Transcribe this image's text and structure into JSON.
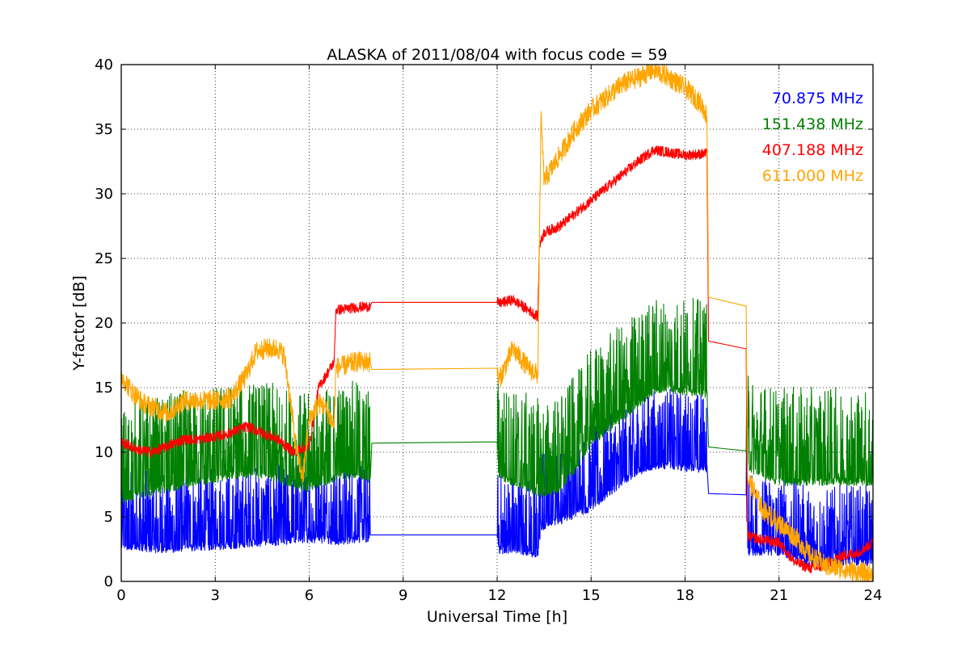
{
  "chart_data": {
    "type": "line",
    "title": "ALASKA of 2011/08/04 with focus code = 59",
    "xlabel": "Universal Time [h]",
    "ylabel": "Y-factor [dB]",
    "xlim": [
      0,
      24
    ],
    "ylim": [
      0,
      40
    ],
    "xticks": [
      0,
      3,
      6,
      9,
      12,
      15,
      18,
      21,
      24
    ],
    "yticks": [
      0,
      5,
      10,
      15,
      20,
      25,
      30,
      35,
      40
    ],
    "grid": true,
    "legend_position": "top-right",
    "series": [
      {
        "name": "70.875 MHz",
        "color": "#0000ff",
        "noise": 2.6,
        "points": [
          [
            0,
            3.0
          ],
          [
            0.5,
            3.0
          ],
          [
            1,
            2.8
          ],
          [
            1.5,
            2.8
          ],
          [
            2,
            2.9
          ],
          [
            2.5,
            3.0
          ],
          [
            3,
            3.0
          ],
          [
            3.5,
            3.1
          ],
          [
            4,
            3.2
          ],
          [
            4.5,
            3.3
          ],
          [
            5,
            3.4
          ],
          [
            5.5,
            3.5
          ],
          [
            6,
            3.6
          ],
          [
            6.5,
            3.5
          ],
          [
            7,
            3.4
          ],
          [
            7.5,
            3.5
          ],
          [
            7.95,
            3.6
          ],
          [
            12,
            3.6
          ],
          [
            12.05,
            2.7
          ],
          [
            12.5,
            2.8
          ],
          [
            13,
            2.5
          ],
          [
            13.3,
            2.4
          ],
          [
            13.4,
            4.5
          ],
          [
            14,
            5.0
          ],
          [
            14.5,
            5.5
          ],
          [
            15,
            6.0
          ],
          [
            15.5,
            7.0
          ],
          [
            16,
            8.0
          ],
          [
            16.5,
            8.8
          ],
          [
            17,
            9.2
          ],
          [
            17.5,
            9.3
          ],
          [
            18,
            9.1
          ],
          [
            18.7,
            9.0
          ],
          [
            18.75,
            6.8
          ],
          [
            19.95,
            6.7
          ],
          [
            20,
            2.6
          ],
          [
            20.5,
            2.6
          ],
          [
            21,
            2.6
          ],
          [
            21.5,
            2.2
          ],
          [
            22,
            1.6
          ],
          [
            22.5,
            1.5
          ],
          [
            23,
            1.8
          ],
          [
            23.5,
            1.8
          ],
          [
            24,
            1.8
          ]
        ]
      },
      {
        "name": "151.438 MHz",
        "color": "#008000",
        "noise": 3.2,
        "points": [
          [
            0,
            6.5
          ],
          [
            0.5,
            7.0
          ],
          [
            1,
            7.2
          ],
          [
            1.5,
            7.5
          ],
          [
            2,
            7.8
          ],
          [
            2.5,
            8.0
          ],
          [
            3,
            8.2
          ],
          [
            3.5,
            8.5
          ],
          [
            4,
            8.6
          ],
          [
            4.5,
            8.5
          ],
          [
            5,
            8.2
          ],
          [
            5.5,
            7.8
          ],
          [
            6,
            7.5
          ],
          [
            6.5,
            8.0
          ],
          [
            7,
            8.5
          ],
          [
            7.5,
            8.5
          ],
          [
            7.95,
            8.0
          ],
          [
            8,
            10.7
          ],
          [
            12,
            10.8
          ],
          [
            12.05,
            8.5
          ],
          [
            12.5,
            8.0
          ],
          [
            13,
            7.5
          ],
          [
            13.5,
            7.0
          ],
          [
            14,
            7.5
          ],
          [
            14.5,
            9.0
          ],
          [
            15,
            11.0
          ],
          [
            15.5,
            12.0
          ],
          [
            16,
            13.0
          ],
          [
            16.5,
            14.0
          ],
          [
            17,
            15.0
          ],
          [
            17.5,
            15.2
          ],
          [
            18,
            15.0
          ],
          [
            18.7,
            14.8
          ],
          [
            18.75,
            10.4
          ],
          [
            19.95,
            10.1
          ],
          [
            20,
            9.0
          ],
          [
            20.5,
            8.5
          ],
          [
            21,
            8.0
          ],
          [
            21.5,
            8.0
          ],
          [
            22,
            8.0
          ],
          [
            22.5,
            8.0
          ],
          [
            23,
            8.0
          ],
          [
            23.5,
            8.0
          ],
          [
            24,
            8.0
          ]
        ]
      },
      {
        "name": "407.188 MHz",
        "color": "#ff0000",
        "noise": 0.4,
        "points": [
          [
            0,
            10.8
          ],
          [
            0.5,
            10.2
          ],
          [
            1,
            10.0
          ],
          [
            1.5,
            10.5
          ],
          [
            2,
            11.0
          ],
          [
            2.5,
            11.0
          ],
          [
            3,
            11.2
          ],
          [
            3.5,
            11.5
          ],
          [
            4,
            12.0
          ],
          [
            4.5,
            11.5
          ],
          [
            5,
            11.0
          ],
          [
            5.5,
            10.0
          ],
          [
            6,
            10.5
          ],
          [
            6.3,
            15.0
          ],
          [
            6.8,
            17.0
          ],
          [
            6.85,
            21.0
          ],
          [
            7.5,
            21.2
          ],
          [
            7.95,
            21.3
          ],
          [
            8,
            21.6
          ],
          [
            12,
            21.6
          ],
          [
            12.05,
            21.5
          ],
          [
            12.5,
            21.8
          ],
          [
            13,
            21.0
          ],
          [
            13.3,
            20.5
          ],
          [
            13.35,
            26.0
          ],
          [
            13.5,
            27.0
          ],
          [
            14,
            27.5
          ],
          [
            14.5,
            28.5
          ],
          [
            15,
            29.5
          ],
          [
            15.5,
            30.5
          ],
          [
            16,
            31.5
          ],
          [
            16.5,
            32.5
          ],
          [
            17,
            33.4
          ],
          [
            17.5,
            33.2
          ],
          [
            18,
            33.0
          ],
          [
            18.7,
            33.1
          ],
          [
            18.75,
            18.6
          ],
          [
            19.95,
            18.0
          ],
          [
            20,
            3.5
          ],
          [
            20.5,
            3.2
          ],
          [
            21,
            3.0
          ],
          [
            21.5,
            1.5
          ],
          [
            22,
            1.0
          ],
          [
            22.5,
            1.2
          ],
          [
            23,
            2.0
          ],
          [
            23.5,
            2.2
          ],
          [
            24,
            3.0
          ]
        ]
      },
      {
        "name": "611.000 MHz",
        "color": "#ffa500",
        "noise": 0.8,
        "points": [
          [
            0,
            16.0
          ],
          [
            0.3,
            14.8
          ],
          [
            0.7,
            13.8
          ],
          [
            1,
            13.5
          ],
          [
            1.5,
            13.0
          ],
          [
            2,
            14.0
          ],
          [
            2.5,
            14.0
          ],
          [
            3,
            14.0
          ],
          [
            3.5,
            14.2
          ],
          [
            4,
            16.0
          ],
          [
            4.3,
            17.8
          ],
          [
            4.6,
            18.0
          ],
          [
            5,
            18.0
          ],
          [
            5.2,
            17.5
          ],
          [
            5.4,
            14.0
          ],
          [
            5.6,
            10.0
          ],
          [
            5.8,
            8.0
          ],
          [
            6,
            12.5
          ],
          [
            6.3,
            13.8
          ],
          [
            6.5,
            13.5
          ],
          [
            6.8,
            12.0
          ],
          [
            6.85,
            16.5
          ],
          [
            7.5,
            17.0
          ],
          [
            7.95,
            17.0
          ],
          [
            8,
            16.4
          ],
          [
            12,
            16.5
          ],
          [
            12.05,
            15.5
          ],
          [
            12.5,
            18.0
          ],
          [
            13,
            16.5
          ],
          [
            13.3,
            16.0
          ],
          [
            13.4,
            36.0
          ],
          [
            13.5,
            31.0
          ],
          [
            14,
            33.0
          ],
          [
            14.5,
            35.0
          ],
          [
            15,
            36.5
          ],
          [
            15.5,
            37.5
          ],
          [
            16,
            38.5
          ],
          [
            16.5,
            39.0
          ],
          [
            17,
            39.6
          ],
          [
            17.5,
            39.0
          ],
          [
            18,
            38.2
          ],
          [
            18.5,
            37.0
          ],
          [
            18.7,
            36.0
          ],
          [
            18.75,
            22.0
          ],
          [
            19.95,
            21.3
          ],
          [
            20,
            8.0
          ],
          [
            20.5,
            5.5
          ],
          [
            21,
            4.5
          ],
          [
            21.5,
            3.5
          ],
          [
            22,
            2.0
          ],
          [
            22.5,
            1.2
          ],
          [
            23,
            1.0
          ],
          [
            23.5,
            0.7
          ],
          [
            24,
            0.5
          ]
        ]
      }
    ]
  }
}
